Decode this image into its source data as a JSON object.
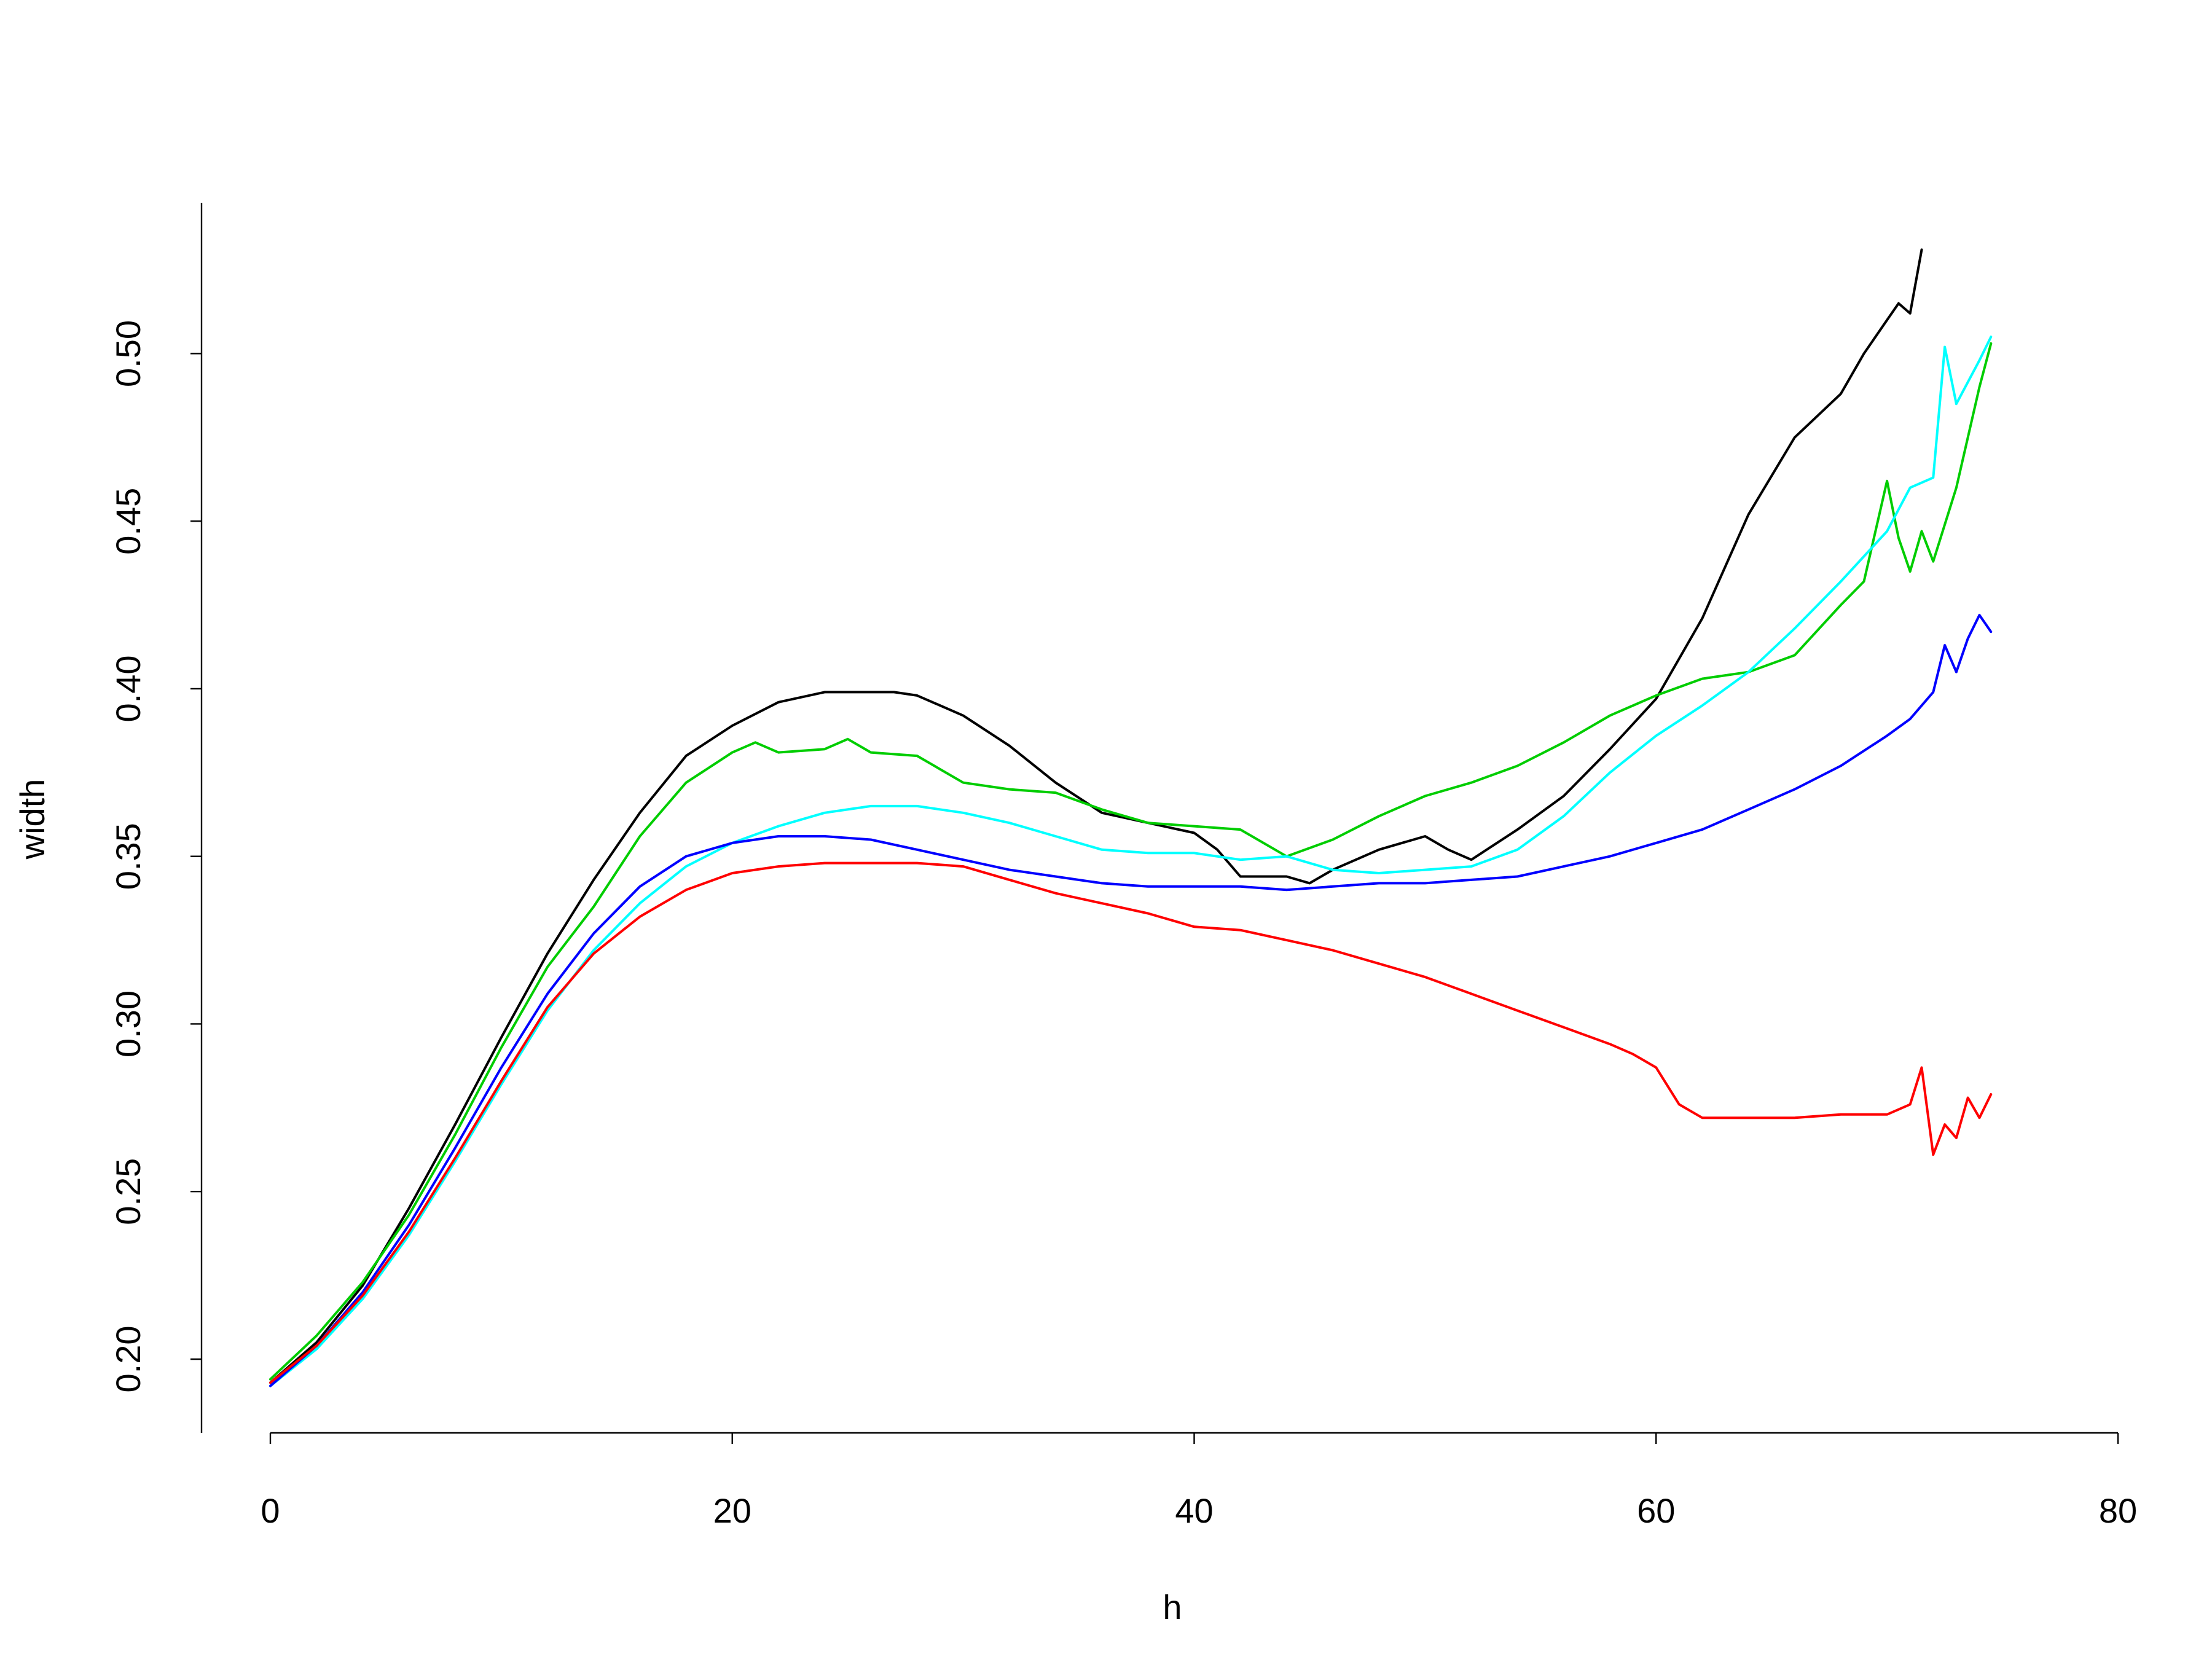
{
  "chart_data": {
    "type": "line",
    "title": "",
    "xlabel": "h",
    "ylabel": "width",
    "xlim": [
      0,
      80
    ],
    "ylim": [
      0.178,
      0.545
    ],
    "x_ticks": [
      0,
      20,
      40,
      60,
      80
    ],
    "x_tick_labels": [
      "0",
      "20",
      "40",
      "60",
      "80"
    ],
    "y_ticks": [
      0.2,
      0.25,
      0.3,
      0.35,
      0.4,
      0.45,
      0.5
    ],
    "y_tick_labels": [
      "0.20",
      "0.25",
      "0.30",
      "0.35",
      "0.40",
      "0.45",
      "0.50"
    ],
    "grid": false,
    "legend": "none",
    "series": [
      {
        "color": "#000000",
        "x": [
          0,
          2,
          4,
          6,
          8,
          10,
          12,
          14,
          16,
          18,
          20,
          22,
          24,
          26,
          27,
          28,
          30,
          32,
          34,
          36,
          38,
          40,
          41,
          42,
          44,
          45,
          46,
          48,
          50,
          51,
          52,
          54,
          56,
          58,
          60,
          62,
          64,
          66,
          68,
          69,
          70,
          70.5,
          71,
          71.5
        ],
        "y": [
          0.193,
          0.205,
          0.222,
          0.245,
          0.27,
          0.296,
          0.321,
          0.343,
          0.363,
          0.38,
          0.389,
          0.396,
          0.399,
          0.399,
          0.399,
          0.398,
          0.392,
          0.383,
          0.372,
          0.363,
          0.36,
          0.357,
          0.352,
          0.344,
          0.344,
          0.342,
          0.346,
          0.352,
          0.356,
          0.352,
          0.349,
          0.358,
          0.368,
          0.382,
          0.397,
          0.421,
          0.452,
          0.475,
          0.488,
          0.5,
          0.51,
          0.515,
          0.512,
          0.531
        ]
      },
      {
        "color": "#00cd00",
        "x": [
          0,
          2,
          4,
          6,
          8,
          10,
          12,
          14,
          16,
          18,
          20,
          21,
          22,
          24,
          25,
          26,
          28,
          30,
          32,
          34,
          36,
          38,
          40,
          42,
          44,
          46,
          48,
          50,
          52,
          54,
          56,
          58,
          60,
          62,
          64,
          66,
          68,
          69,
          70,
          70.5,
          71,
          71.5,
          72,
          73,
          74,
          74.5
        ],
        "y": [
          0.194,
          0.207,
          0.223,
          0.243,
          0.267,
          0.293,
          0.317,
          0.335,
          0.356,
          0.372,
          0.381,
          0.384,
          0.381,
          0.382,
          0.385,
          0.381,
          0.38,
          0.372,
          0.37,
          0.369,
          0.364,
          0.36,
          0.359,
          0.358,
          0.35,
          0.355,
          0.362,
          0.368,
          0.372,
          0.377,
          0.384,
          0.392,
          0.398,
          0.403,
          0.405,
          0.41,
          0.425,
          0.432,
          0.462,
          0.445,
          0.435,
          0.447,
          0.438,
          0.46,
          0.49,
          0.503
        ]
      },
      {
        "color": "#00ffff",
        "x": [
          0,
          2,
          4,
          6,
          8,
          10,
          12,
          14,
          16,
          18,
          20,
          22,
          24,
          26,
          28,
          30,
          32,
          34,
          36,
          38,
          40,
          42,
          44,
          46,
          48,
          50,
          52,
          54,
          56,
          58,
          60,
          62,
          64,
          66,
          68,
          70,
          71,
          72,
          72.5,
          73,
          74,
          74.5
        ],
        "y": [
          0.192,
          0.203,
          0.218,
          0.237,
          0.259,
          0.282,
          0.304,
          0.322,
          0.336,
          0.347,
          0.354,
          0.359,
          0.363,
          0.365,
          0.365,
          0.363,
          0.36,
          0.356,
          0.352,
          0.351,
          0.351,
          0.349,
          0.35,
          0.346,
          0.345,
          0.346,
          0.347,
          0.352,
          0.362,
          0.375,
          0.386,
          0.395,
          0.405,
          0.418,
          0.432,
          0.447,
          0.46,
          0.463,
          0.502,
          0.485,
          0.498,
          0.505
        ]
      },
      {
        "color": "#0000ff",
        "x": [
          0,
          2,
          4,
          6,
          8,
          10,
          12,
          14,
          16,
          18,
          20,
          22,
          24,
          26,
          28,
          30,
          32,
          34,
          36,
          38,
          40,
          42,
          44,
          46,
          48,
          50,
          52,
          54,
          56,
          58,
          60,
          62,
          64,
          66,
          68,
          70,
          71,
          72,
          72.5,
          73,
          73.5,
          74,
          74.5
        ],
        "y": [
          0.192,
          0.204,
          0.22,
          0.24,
          0.263,
          0.287,
          0.309,
          0.327,
          0.341,
          0.35,
          0.354,
          0.356,
          0.356,
          0.355,
          0.352,
          0.349,
          0.346,
          0.344,
          0.342,
          0.341,
          0.341,
          0.341,
          0.34,
          0.341,
          0.342,
          0.342,
          0.343,
          0.344,
          0.347,
          0.35,
          0.354,
          0.358,
          0.364,
          0.37,
          0.377,
          0.386,
          0.391,
          0.399,
          0.413,
          0.405,
          0.415,
          0.422,
          0.417
        ]
      },
      {
        "color": "#ff0000",
        "x": [
          0,
          2,
          4,
          6,
          8,
          10,
          12,
          14,
          16,
          18,
          20,
          22,
          24,
          26,
          28,
          30,
          32,
          34,
          36,
          38,
          40,
          42,
          44,
          46,
          48,
          50,
          52,
          54,
          56,
          58,
          59,
          60,
          61,
          62,
          64,
          66,
          68,
          70,
          71,
          71.5,
          72,
          72.5,
          73,
          73.5,
          74,
          74.5
        ],
        "y": [
          0.193,
          0.204,
          0.219,
          0.238,
          0.26,
          0.283,
          0.305,
          0.321,
          0.332,
          0.34,
          0.345,
          0.347,
          0.348,
          0.348,
          0.348,
          0.347,
          0.343,
          0.339,
          0.336,
          0.333,
          0.329,
          0.328,
          0.325,
          0.322,
          0.318,
          0.314,
          0.309,
          0.304,
          0.299,
          0.294,
          0.291,
          0.287,
          0.276,
          0.272,
          0.272,
          0.272,
          0.273,
          0.273,
          0.276,
          0.287,
          0.261,
          0.27,
          0.266,
          0.278,
          0.272,
          0.279
        ]
      }
    ]
  }
}
